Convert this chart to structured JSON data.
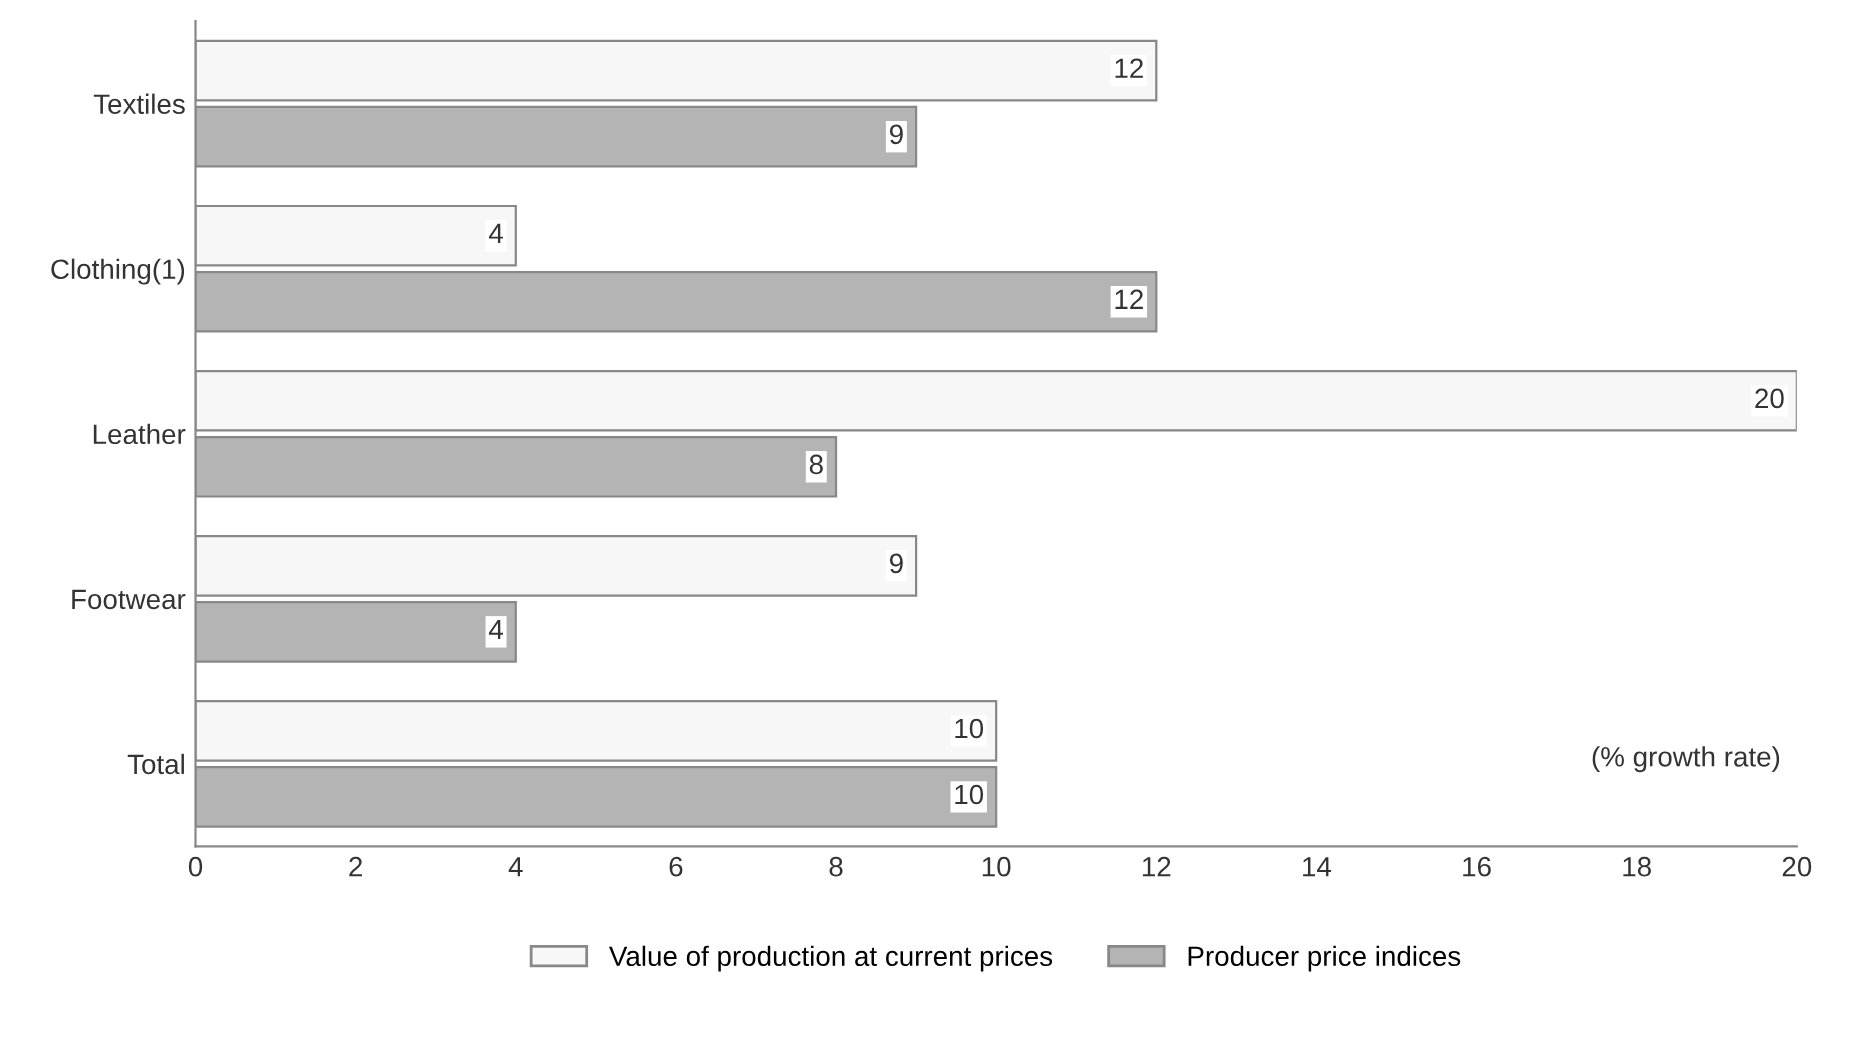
{
  "chart_data": {
    "type": "bar",
    "orientation": "horizontal",
    "categories": [
      "Textiles",
      "Clothing(1)",
      "Leather",
      "Footwear",
      "Total"
    ],
    "series": [
      {
        "name": "Value of production at current prices",
        "color": "#f7f7f7",
        "values": [
          12,
          4,
          20,
          9,
          10
        ]
      },
      {
        "name": "Producer price indices",
        "color": "#b4b4b4",
        "values": [
          9,
          12,
          8,
          4,
          10
        ]
      }
    ],
    "xlim": [
      0,
      20
    ],
    "xticks": [
      0,
      2,
      4,
      6,
      8,
      10,
      12,
      14,
      16,
      18,
      20
    ],
    "data_labels": true,
    "grid": false,
    "legend": "bottom",
    "annotations": [
      "(% growth rate)"
    ]
  }
}
